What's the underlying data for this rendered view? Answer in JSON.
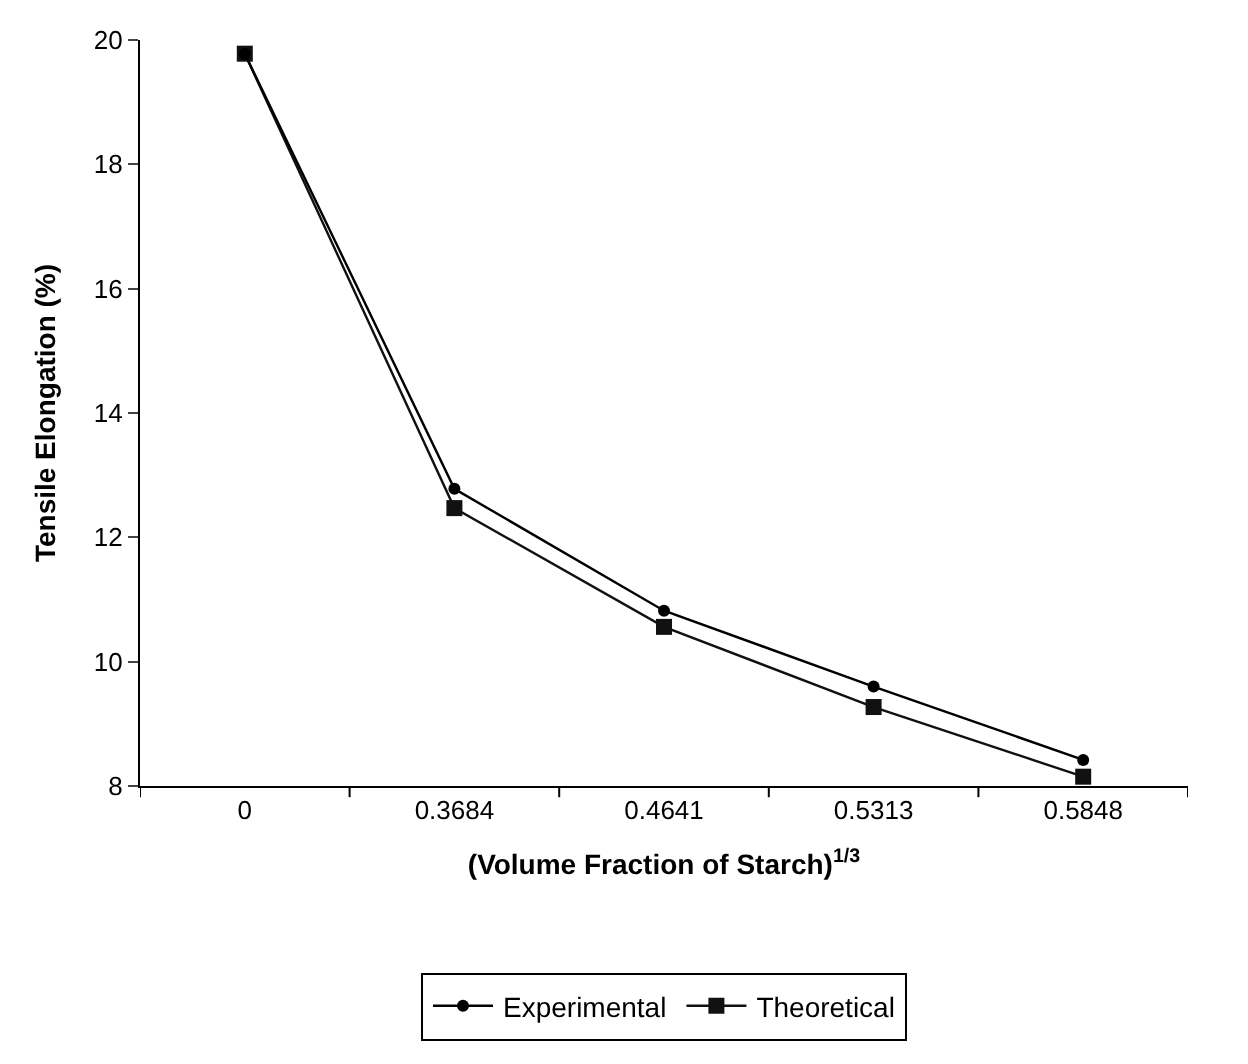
{
  "chart_data": {
    "type": "line",
    "xlabel": "(Volume Fraction of Starch)$^{1/3}$",
    "ylabel": "Tensile Elongation (%)",
    "categories": [
      "0",
      "0.3684",
      "0.4641",
      "0.5313",
      "0.5848"
    ],
    "series": [
      {
        "name": "Experimental",
        "color": "#000000",
        "marker": "circle",
        "values": [
          19.78,
          12.78,
          10.82,
          9.6,
          8.42
        ]
      },
      {
        "name": "Theoretical",
        "color": "#111111",
        "marker": "square",
        "values": [
          19.78,
          12.47,
          10.56,
          9.27,
          8.15
        ]
      }
    ],
    "ylim": [
      8,
      20
    ],
    "yticks": [
      8,
      10,
      12,
      14,
      16,
      18,
      20
    ],
    "legend": "bottom",
    "line_style": "solid"
  }
}
